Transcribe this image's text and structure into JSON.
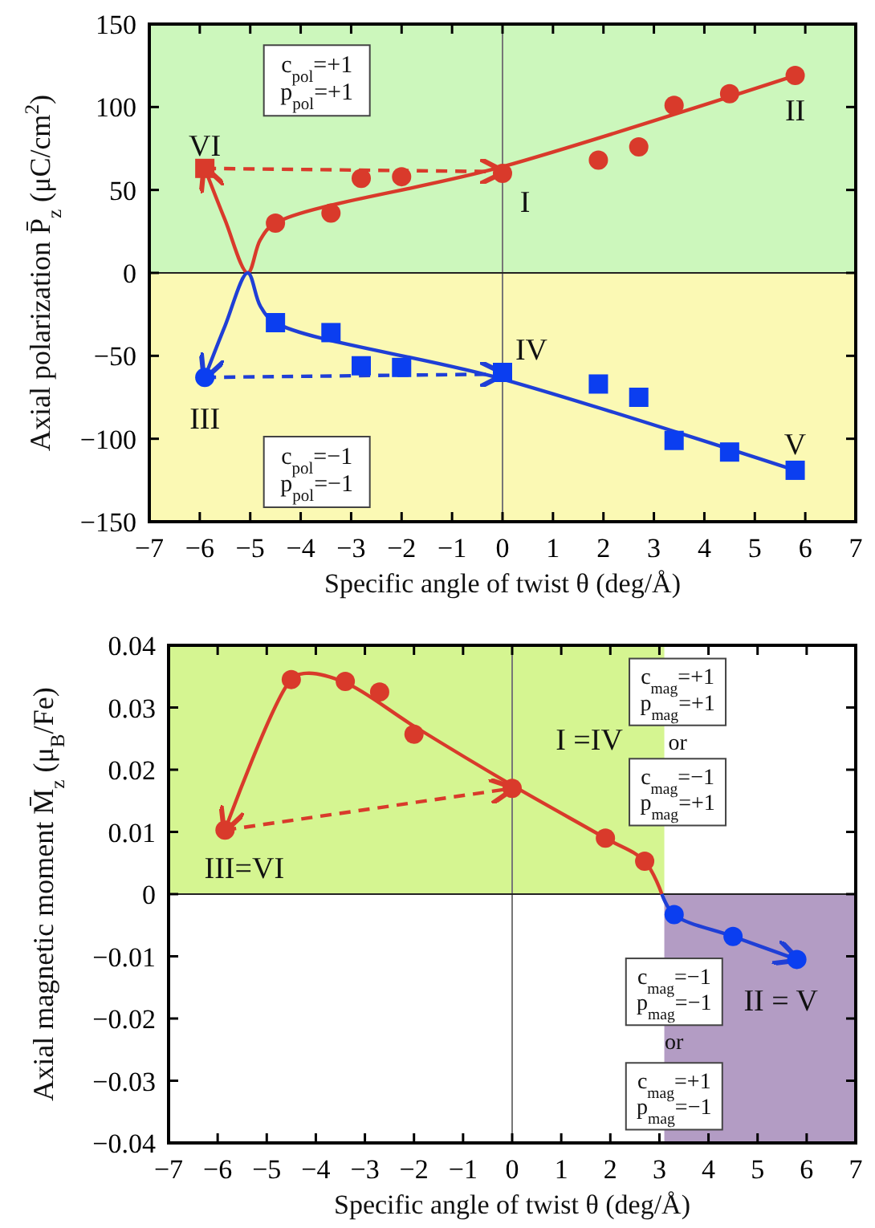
{
  "chart_data": [
    {
      "type": "scatter",
      "xlabel": "Specific angle of twist  θ  (deg/Å)",
      "ylabel": "Axial polarization  P̄$_{z}$  (μC/cm$^{2}$)",
      "xlim": [
        -7,
        7
      ],
      "ylim": [
        -150,
        150
      ],
      "xticks": [
        -7,
        -6,
        -5,
        -4,
        -3,
        -2,
        -1,
        0,
        1,
        2,
        3,
        4,
        5,
        6,
        7
      ],
      "yticks": [
        -150,
        -100,
        -50,
        0,
        50,
        100,
        150
      ],
      "grid": false,
      "bands": [
        {
          "axis": "y",
          "from": 0,
          "to": 150,
          "color": "#ccf7bc"
        },
        {
          "axis": "y",
          "from": -150,
          "to": 0,
          "color": "#fbf9b4"
        }
      ],
      "ref_lines": [
        {
          "axis": "x",
          "value": 0,
          "color": "#777777"
        },
        {
          "axis": "y",
          "value": 0,
          "color": "#222222"
        }
      ],
      "series": [
        {
          "type": "line",
          "color": "#d93a2b",
          "marker": "none",
          "line_style": "solid",
          "x": [
            5.8,
            0,
            -4.5,
            -4.8,
            -5.05,
            -5.5,
            -5.9
          ],
          "values": [
            119,
            64,
            30,
            20,
            0,
            32,
            63
          ]
        },
        {
          "type": "line",
          "color": "#d93a2b",
          "marker": "none",
          "line_style": "dashed",
          "x": [
            -5.9,
            0
          ],
          "values": [
            63,
            61
          ]
        },
        {
          "type": "line",
          "color": "#1f3fd6",
          "marker": "none",
          "line_style": "solid",
          "x": [
            5.8,
            0,
            -4.5,
            -4.8,
            -5.05,
            -5.5,
            -5.9
          ],
          "values": [
            -119,
            -64,
            -30,
            -20,
            0,
            -32,
            -63
          ]
        },
        {
          "type": "line",
          "color": "#1f3fd6",
          "marker": "none",
          "line_style": "dashed",
          "x": [
            -5.9,
            0
          ],
          "values": [
            -63,
            -61
          ]
        },
        {
          "color": "#d93a2b",
          "marker": "circle",
          "x": [
            -4.5,
            -3.4,
            -2.8,
            -2,
            0,
            1.9,
            2.7,
            3.4,
            4.5,
            5.8
          ],
          "values": [
            30,
            36,
            57,
            58,
            60,
            68,
            76,
            101,
            108,
            119
          ]
        },
        {
          "color": "#d93a2b",
          "marker": "square",
          "x": [
            -5.9
          ],
          "values": [
            63
          ]
        },
        {
          "color": "#0b3ef0",
          "marker": "square",
          "x": [
            -4.5,
            -3.4,
            -2.8,
            -2,
            0,
            1.9,
            2.7,
            3.4,
            4.5,
            5.8
          ],
          "values": [
            -30,
            -36,
            -56,
            -57,
            -60,
            -67,
            -75,
            -101,
            -108,
            -119
          ]
        },
        {
          "color": "#0b3ef0",
          "marker": "circle",
          "x": [
            -5.9
          ],
          "values": [
            -63
          ]
        }
      ],
      "annotations": [
        {
          "text": "VI",
          "x": -5.9,
          "y": 63
        },
        {
          "text": "I",
          "x": 0,
          "y": 60
        },
        {
          "text": "II",
          "x": 5.8,
          "y": 119
        },
        {
          "text": "III",
          "x": -5.9,
          "y": -63
        },
        {
          "text": "IV",
          "x": 0,
          "y": -60
        },
        {
          "text": "V",
          "x": 5.8,
          "y": -119
        },
        "c$_{pol}$=+1\np$_{pol}$=+1",
        "c$_{pol}$=−1\np$_{pol}$=−1"
      ]
    },
    {
      "type": "scatter",
      "xlabel": "Specific angle of twist  θ  (deg/Å)",
      "ylabel": "Axial magnetic moment  M̄$_{z}$  (μ$_{B}$/Fe)",
      "xlim": [
        -7,
        7
      ],
      "ylim": [
        -0.04,
        0.04
      ],
      "xticks": [
        -7,
        -6,
        -5,
        -4,
        -3,
        -2,
        -1,
        0,
        1,
        2,
        3,
        4,
        5,
        6,
        7
      ],
      "yticks": [
        -0.04,
        -0.03,
        -0.02,
        -0.01,
        0,
        0.01,
        0.02,
        0.03,
        0.04
      ],
      "grid": false,
      "bands": [
        {
          "axis": "x",
          "from": -7,
          "to": 3.1,
          "color": "#d5f591"
        },
        {
          "axis": "x",
          "from": 3.1,
          "to": 7,
          "color": "#b39cc4"
        }
      ],
      "ref_lines": [
        {
          "axis": "x",
          "value": 0,
          "color": "#777777"
        },
        {
          "axis": "y",
          "value": 0,
          "color": "#222222"
        }
      ],
      "series": [
        {
          "type": "line",
          "color": "#d93a2b",
          "marker": "none",
          "line_style": "solid",
          "x": [
            3.05,
            2.7,
            1.9,
            0,
            -2,
            -3.4,
            -4.2,
            -4.5,
            -5.85
          ],
          "values": [
            0,
            0.0053,
            0.009,
            0.0175,
            0.027,
            0.034,
            0.0355,
            0.0345,
            0.0103
          ]
        },
        {
          "type": "line",
          "color": "#d93a2b",
          "marker": "none",
          "line_style": "dashed",
          "x": [
            -5.85,
            0
          ],
          "values": [
            0.0103,
            0.017
          ]
        },
        {
          "type": "line",
          "color": "#1f3fd6",
          "marker": "none",
          "line_style": "solid",
          "x": [
            3.05,
            3.3,
            4.5,
            5.8
          ],
          "values": [
            0,
            -0.0033,
            -0.0068,
            -0.0105
          ]
        },
        {
          "color": "#d93a2b",
          "marker": "circle",
          "x": [
            -5.85,
            -4.5,
            -3.4,
            -2.7,
            -2,
            0,
            1.9,
            2.7
          ],
          "values": [
            0.0103,
            0.0345,
            0.0342,
            0.0325,
            0.0257,
            0.017,
            0.009,
            0.0053
          ]
        },
        {
          "color": "#0b3ef0",
          "marker": "circle",
          "x": [
            3.3,
            4.5,
            5.8
          ],
          "values": [
            -0.0033,
            -0.0068,
            -0.0105
          ]
        }
      ],
      "annotations": [
        {
          "text": "I =IV",
          "x": 0,
          "y": 0.017
        },
        {
          "text": "III=VI",
          "x": -5.85,
          "y": 0.0103
        },
        {
          "text": "II = V",
          "x": 5.8,
          "y": -0.0105
        },
        "c$_{mag}$=+1\np$_{mag}$=+1",
        "or",
        "c$_{mag}$=−1\np$_{mag}$=+1",
        "c$_{mag}$=−1\np$_{mag}$=−1",
        "or",
        "c$_{mag}$=+1\np$_{mag}$=−1"
      ]
    }
  ]
}
